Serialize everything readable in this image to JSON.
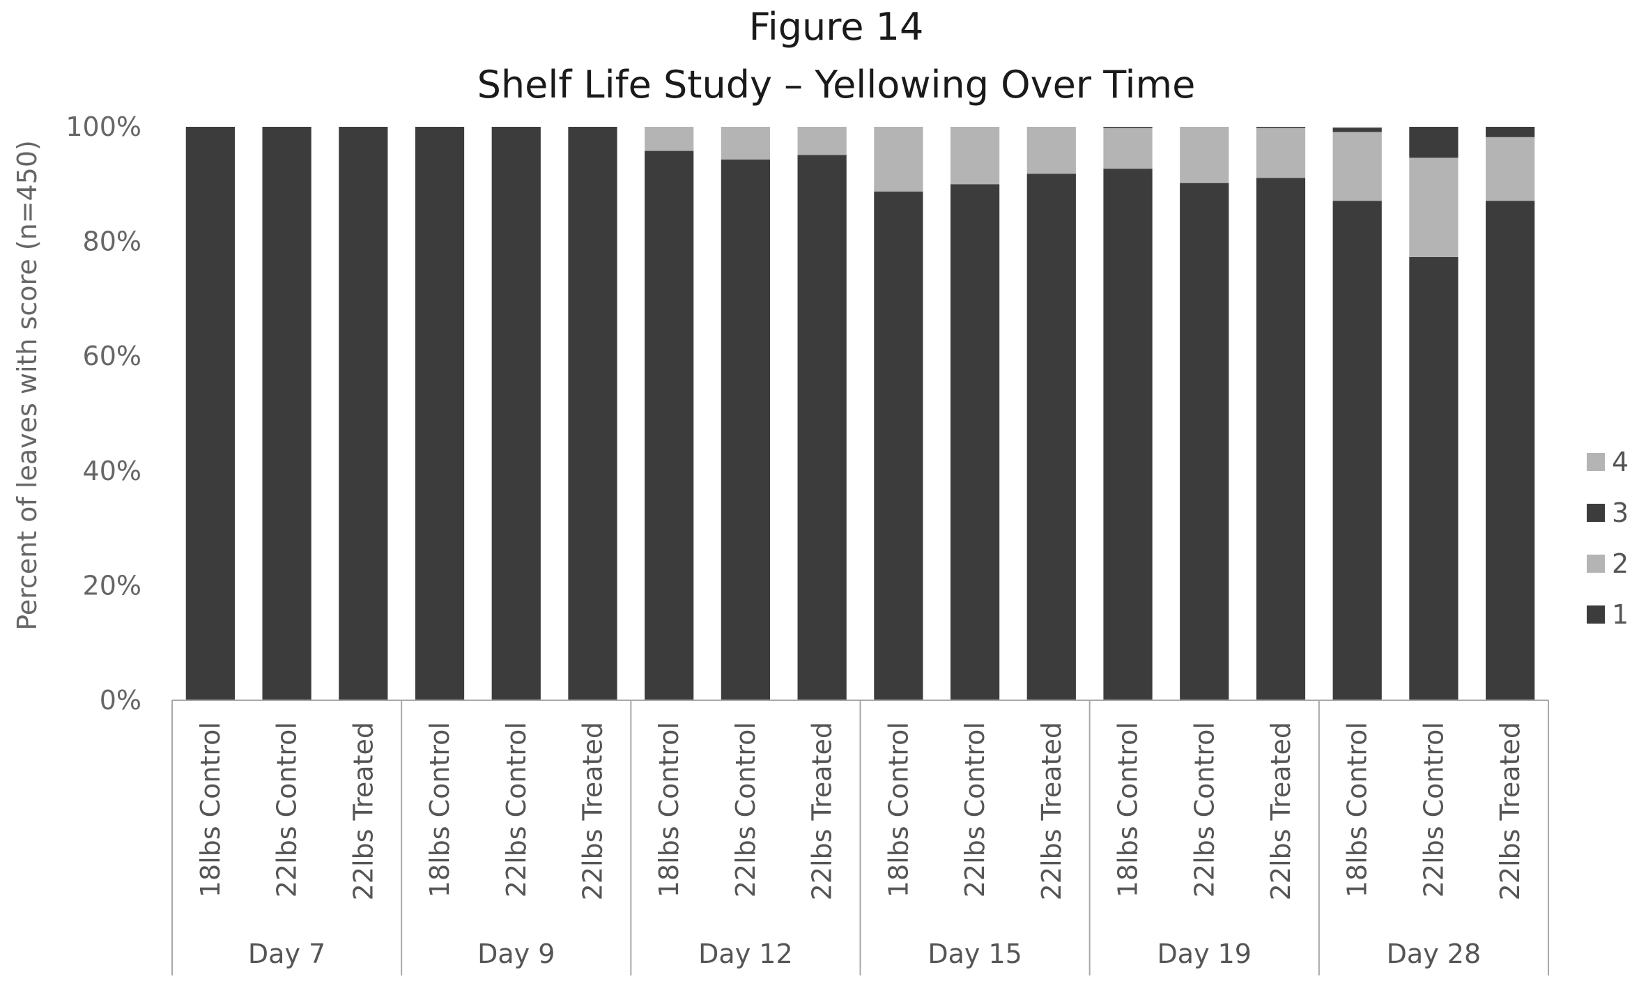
{
  "chart_data": {
    "type": "bar",
    "stacked": true,
    "title": "Figure 14",
    "subtitle": "Shelf Life Study – Yellowing Over Time",
    "ylabel": "Percent of leaves with score (n=450)",
    "xlabel": "",
    "ylim": [
      0,
      100
    ],
    "yticks": [
      "0%",
      "20%",
      "40%",
      "60%",
      "80%",
      "100%"
    ],
    "groups": [
      {
        "label": "Day 7",
        "categories": [
          "18lbs Control",
          "22lbs Control",
          "22lbs Treated"
        ]
      },
      {
        "label": "Day 9",
        "categories": [
          "18lbs Control",
          "22lbs Control",
          "22lbs Treated"
        ]
      },
      {
        "label": "Day 12",
        "categories": [
          "18lbs Control",
          "22lbs Control",
          "22lbs Treated"
        ]
      },
      {
        "label": "Day 15",
        "categories": [
          "18lbs Control",
          "22lbs Control",
          "22lbs Treated"
        ]
      },
      {
        "label": "Day 19",
        "categories": [
          "18lbs Control",
          "22lbs Control",
          "22lbs Treated"
        ]
      },
      {
        "label": "Day 28",
        "categories": [
          "18lbs Control",
          "22lbs Control",
          "22lbs Treated"
        ]
      }
    ],
    "series": [
      {
        "name": "1",
        "color": "#3c3c3c",
        "values": [
          100,
          100,
          100,
          100,
          100,
          100,
          95.8,
          94.3,
          95.1,
          88.7,
          90.0,
          91.8,
          92.7,
          90.2,
          91.1,
          87.1,
          77.3,
          87.1
        ]
      },
      {
        "name": "2",
        "color": "#b4b4b4",
        "values": [
          0,
          0,
          0,
          0,
          0,
          0,
          4.2,
          5.7,
          4.9,
          11.3,
          10.0,
          8.2,
          7.1,
          9.8,
          8.7,
          12.0,
          17.3,
          11.1
        ]
      },
      {
        "name": "3",
        "color": "#3c3c3c",
        "values": [
          0,
          0,
          0,
          0,
          0,
          0,
          0,
          0,
          0,
          0,
          0,
          0,
          0.2,
          0,
          0.2,
          0.7,
          5.4,
          1.8
        ]
      },
      {
        "name": "4",
        "color": "#b4b4b4",
        "values": [
          0,
          0,
          0,
          0,
          0,
          0,
          0,
          0,
          0,
          0,
          0,
          0,
          0,
          0,
          0,
          0.2,
          0,
          0
        ]
      }
    ],
    "legend": {
      "position": "right",
      "order": [
        "4",
        "3",
        "2",
        "1"
      ]
    },
    "grid": false
  }
}
